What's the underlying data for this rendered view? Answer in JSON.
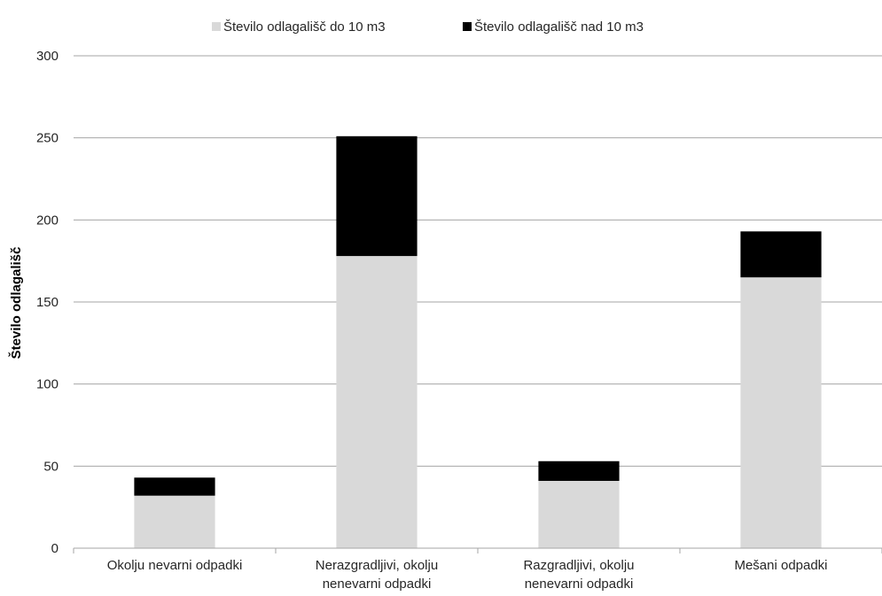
{
  "chart_data": {
    "type": "bar",
    "stacked": true,
    "categories": [
      [
        "Okolju nevarni odpadki"
      ],
      [
        "Nerazgradljivi, okolju",
        "nenevarni odpadki"
      ],
      [
        "Razgradljivi, okolju",
        "nenevarni odpadki"
      ],
      [
        "Mešani odpadki"
      ]
    ],
    "series": [
      {
        "name": "Število odlagališč do 10 m3",
        "color": "#d9d9d9",
        "values": [
          32,
          178,
          41,
          165
        ]
      },
      {
        "name": "Število odlagališč nad 10 m3",
        "color": "#000000",
        "values": [
          11,
          73,
          12,
          28
        ]
      }
    ],
    "ylabel": "Število odlagališč",
    "ylim": [
      0,
      300
    ],
    "yticks": [
      0,
      50,
      100,
      150,
      200,
      250,
      300
    ],
    "grid": true,
    "legend_position": "top-center",
    "gridline_color": "#a6a6a6"
  }
}
